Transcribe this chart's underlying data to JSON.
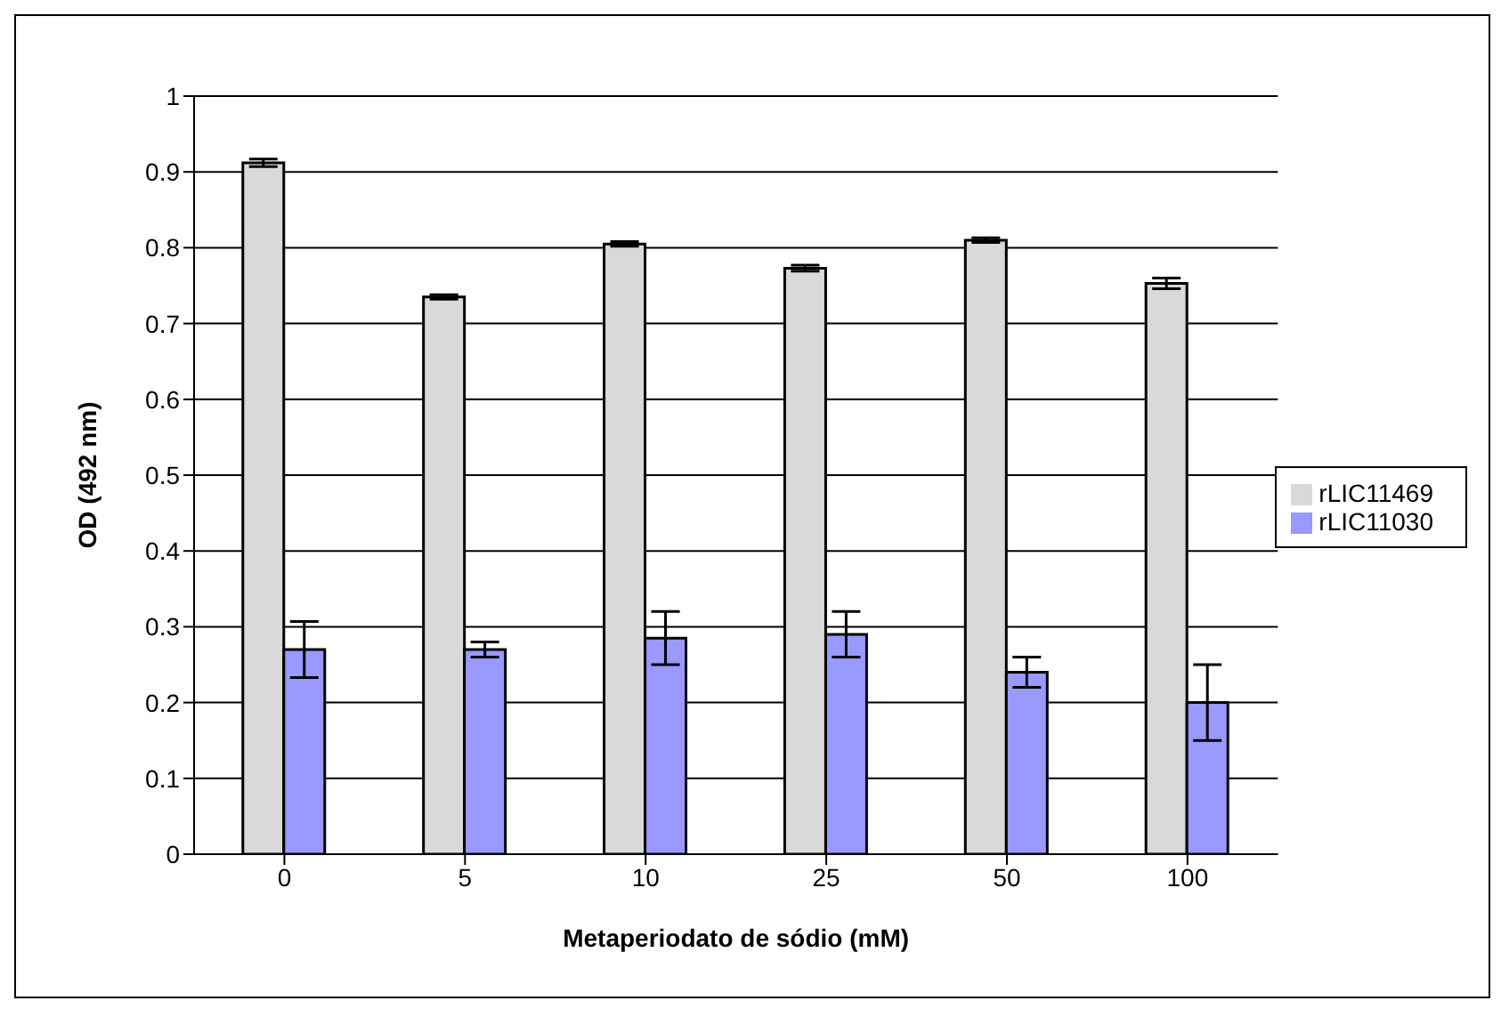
{
  "chart_data": {
    "type": "bar",
    "xlabel": "Metaperiodato de sódio (mM)",
    "ylabel": "OD (492 nm)",
    "categories": [
      "0",
      "5",
      "10",
      "25",
      "50",
      "100"
    ],
    "series": [
      {
        "name": "rLIC11469",
        "color": "#d9d9d9",
        "values": [
          0.912,
          0.735,
          0.805,
          0.773,
          0.81,
          0.753
        ],
        "errors": [
          0.005,
          0.003,
          0.003,
          0.004,
          0.003,
          0.007
        ]
      },
      {
        "name": "rLIC11030",
        "color": "#9999ff",
        "values": [
          0.27,
          0.27,
          0.285,
          0.29,
          0.24,
          0.2
        ],
        "errors": [
          0.037,
          0.01,
          0.035,
          0.03,
          0.02,
          0.05
        ]
      }
    ],
    "ylim": [
      0,
      1
    ],
    "yticks": [
      0,
      0.1,
      0.2,
      0.3,
      0.4,
      0.5,
      0.6,
      0.7,
      0.8,
      0.9,
      1
    ],
    "grid": "y",
    "legend": "right"
  }
}
